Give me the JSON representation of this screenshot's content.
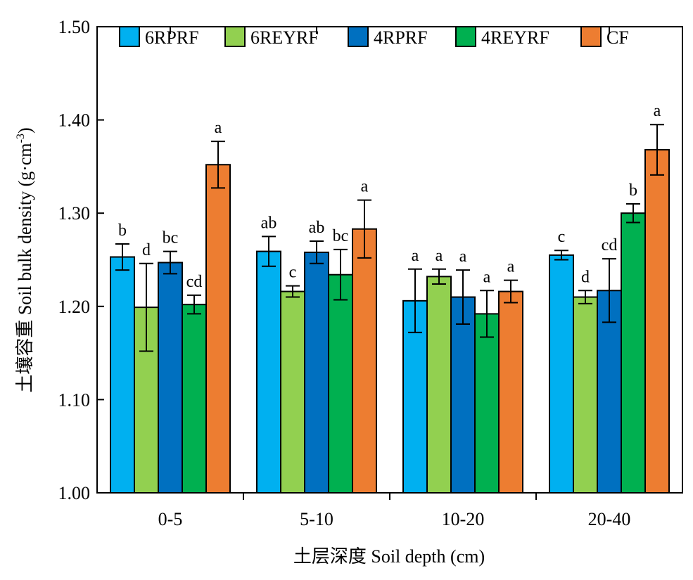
{
  "chart_data": {
    "type": "bar",
    "title": "",
    "xlabel": "土层深度 Soil depth (cm)",
    "ylabel": "土壤容重 Soil bulk density (g·cm",
    "ylabel_sup": "-3",
    "ylabel_close": ")",
    "ylim": [
      1.0,
      1.5
    ],
    "yticks": [
      "1.00",
      "1.10",
      "1.20",
      "1.30",
      "1.40",
      "1.50"
    ],
    "grid": false,
    "legend_position": "top",
    "categories": [
      "0-5",
      "5-10",
      "10-20",
      "20-40"
    ],
    "series": [
      {
        "name": "6RPRF",
        "color": "#00B0F0",
        "values": [
          1.253,
          1.259,
          1.206,
          1.255
        ],
        "errors": [
          0.014,
          0.016,
          0.034,
          0.005
        ],
        "letters": [
          "b",
          "ab",
          "a",
          "c"
        ]
      },
      {
        "name": "6REYRF",
        "color": "#92D050",
        "values": [
          1.199,
          1.216,
          1.232,
          1.21
        ],
        "errors": [
          0.047,
          0.006,
          0.008,
          0.007
        ],
        "letters": [
          "d",
          "c",
          "a",
          "d"
        ]
      },
      {
        "name": "4RPRF",
        "color": "#0070C0",
        "values": [
          1.247,
          1.258,
          1.21,
          1.217
        ],
        "errors": [
          0.012,
          0.012,
          0.029,
          0.034
        ],
        "letters": [
          "bc",
          "ab",
          "a",
          "cd"
        ]
      },
      {
        "name": "4REYRF",
        "color": "#00B050",
        "values": [
          1.202,
          1.234,
          1.192,
          1.3
        ],
        "errors": [
          0.01,
          0.027,
          0.025,
          0.01
        ],
        "letters": [
          "cd",
          "bc",
          "a",
          "b"
        ]
      },
      {
        "name": "CF",
        "color": "#ED7D31",
        "values": [
          1.352,
          1.283,
          1.216,
          1.368
        ],
        "errors": [
          0.025,
          0.031,
          0.012,
          0.027
        ],
        "letters": [
          "a",
          "a",
          "a",
          "a"
        ]
      }
    ]
  }
}
